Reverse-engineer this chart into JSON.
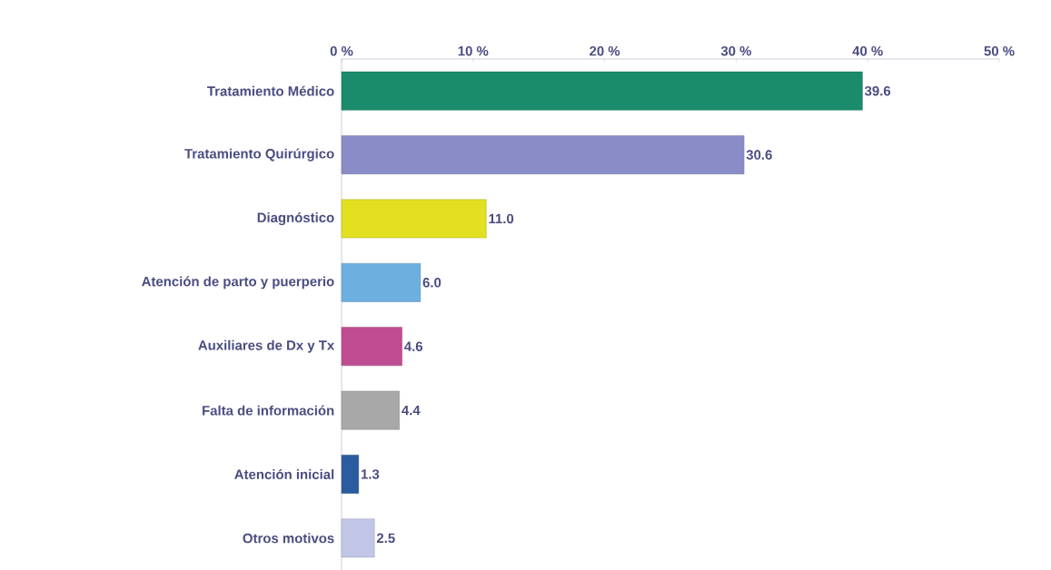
{
  "chart_data": {
    "type": "bar",
    "orientation": "horizontal",
    "categories": [
      "Tratamiento Médico",
      "Tratamiento Quirúrgico",
      "Diagnóstico",
      "Atención de parto y puerperio",
      "Auxiliares de Dx y Tx",
      "Falta de información",
      "Atención inicial",
      "Otros motivos"
    ],
    "values": [
      39.6,
      30.6,
      11.0,
      6.0,
      4.6,
      4.4,
      1.3,
      2.5
    ],
    "value_labels": [
      "39.6",
      "30.6",
      "11.0",
      "6.0",
      "4.6",
      "4.4",
      "1.3",
      "2.5"
    ],
    "colors": [
      "#1a8c6c",
      "#8a8cc8",
      "#e2e020",
      "#6cb0e0",
      "#c04c92",
      "#a8a8a8",
      "#2a5c9e",
      "#c2c6e6"
    ],
    "xlim": [
      0,
      50
    ],
    "xticks": [
      {
        "value": 0,
        "label": "0 %"
      },
      {
        "value": 10,
        "label": "10 %"
      },
      {
        "value": 20,
        "label": "20 %"
      },
      {
        "value": 30,
        "label": "30 %"
      },
      {
        "value": 40,
        "label": "40 %"
      },
      {
        "value": 50,
        "label": "50 %"
      }
    ]
  }
}
